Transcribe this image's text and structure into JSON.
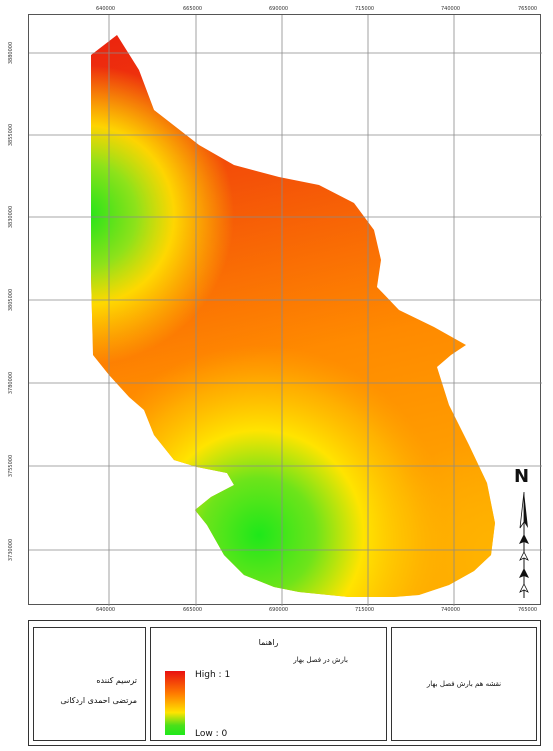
{
  "map": {
    "grid_x_labels": [
      "640000",
      "665000",
      "690000",
      "715000",
      "740000",
      "765000"
    ],
    "grid_y_labels": [
      "3880000",
      "3855000",
      "3830000",
      "3805000",
      "3780000",
      "3755000",
      "3730000"
    ],
    "colors": {
      "high": "#e81010",
      "mid": "#ff8c00",
      "yellow": "#ffe400",
      "low": "#1ee81a"
    },
    "north_label": "N"
  },
  "legend": {
    "heading": "راهنما",
    "subtitle": "بارش در فصل بهار",
    "high_label": "High : 1",
    "low_label": "Low : 0"
  },
  "author": {
    "label": "ترسیم کننده",
    "name": "مرتضی احمدی اردکانی"
  },
  "title": {
    "text": "نقشه هم بارش فصل بهار"
  }
}
